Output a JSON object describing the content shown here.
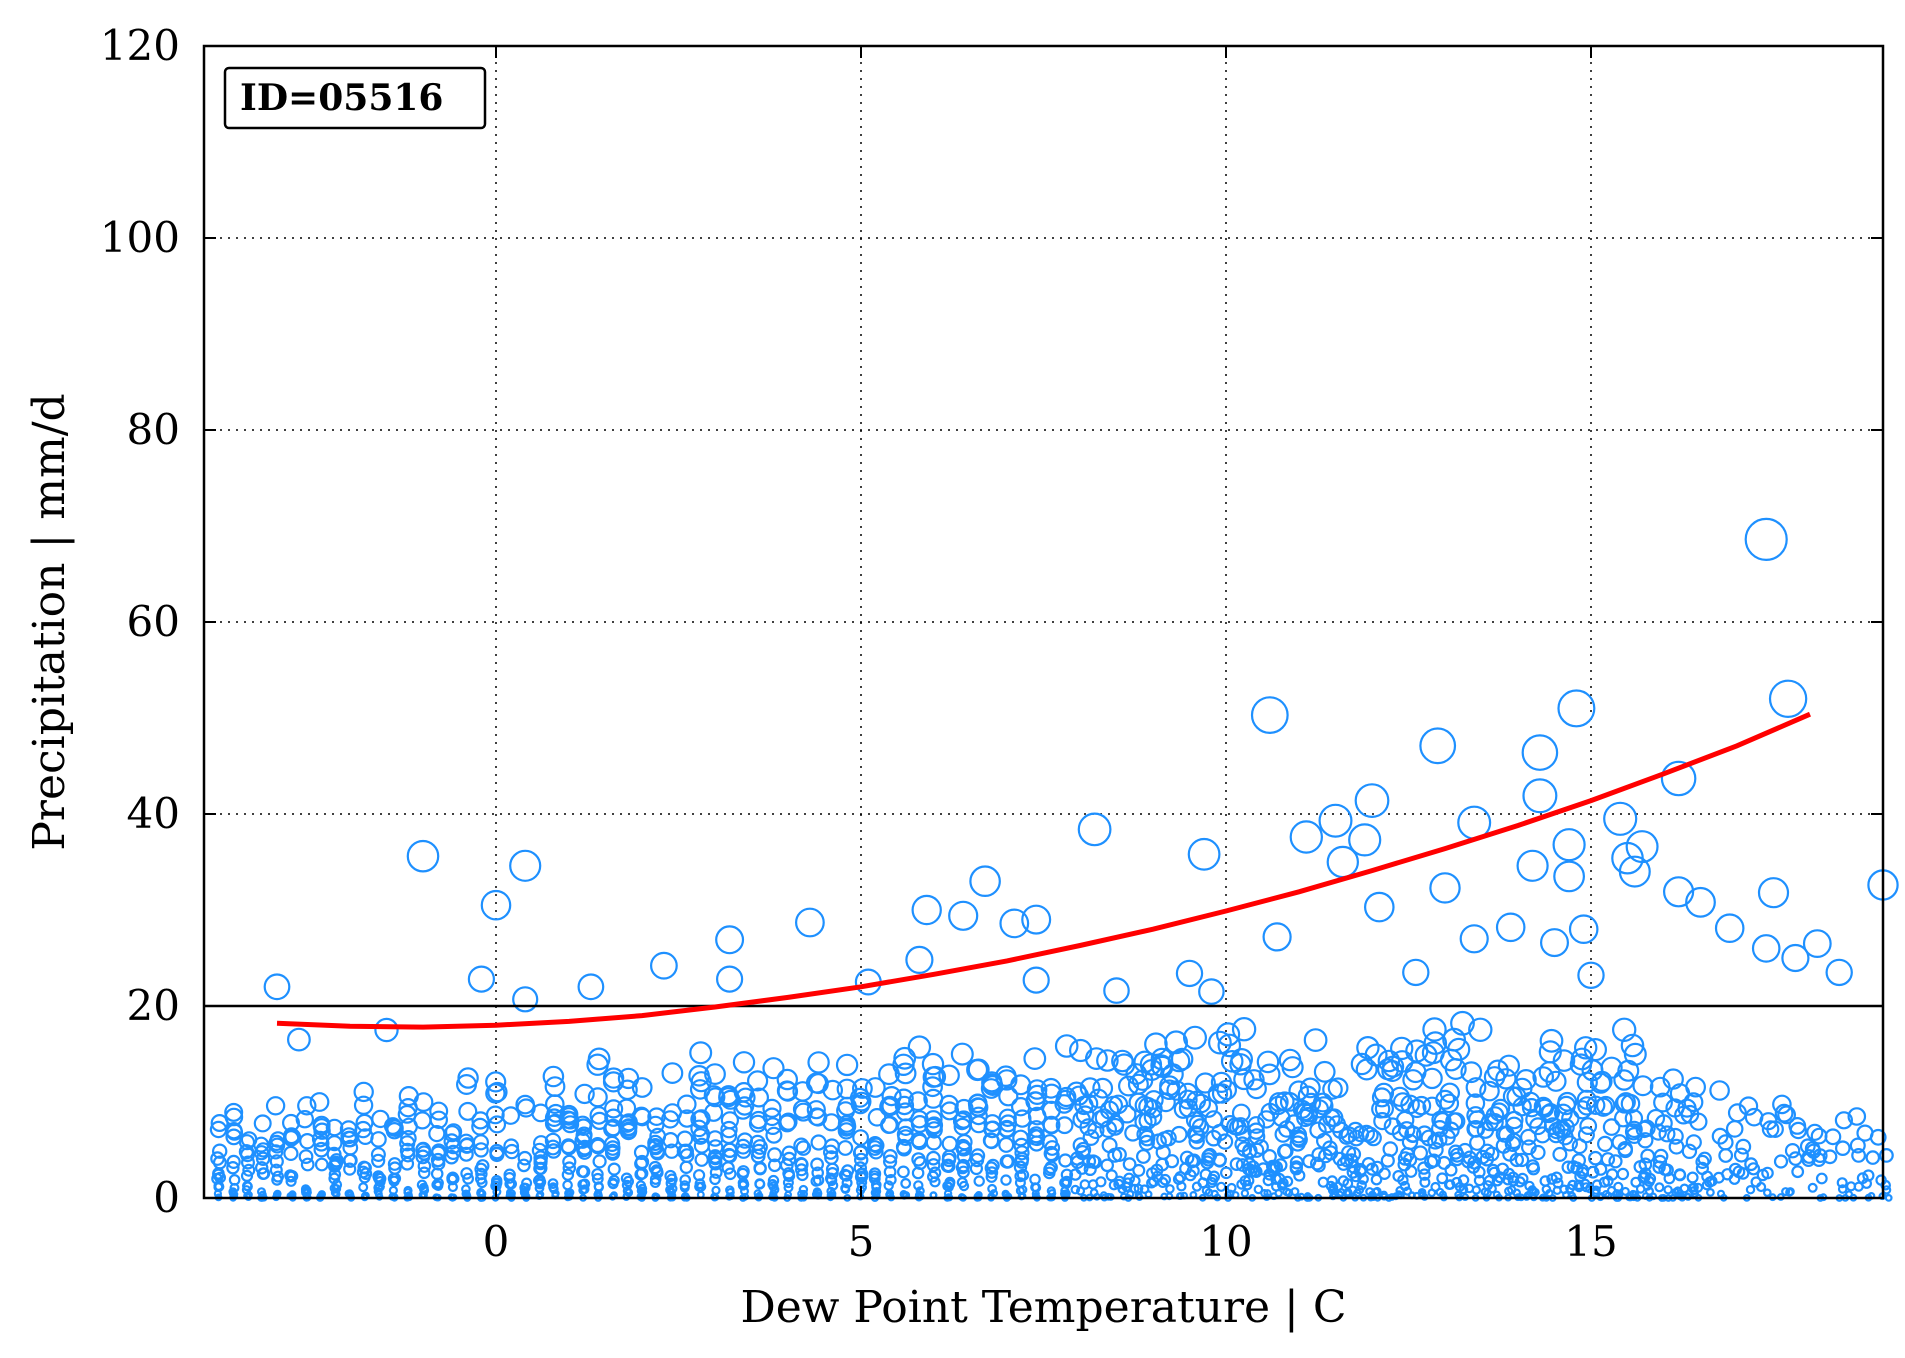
{
  "chart_data": {
    "type": "scatter",
    "title": "",
    "xlabel": "Dew Point Temperature | C",
    "ylabel": "Precipitation | mm/d",
    "xlim": [
      -4,
      19
    ],
    "ylim": [
      0,
      120
    ],
    "xticks": [
      "0",
      "5",
      "10",
      "15"
    ],
    "xtick_values": [
      0,
      5,
      10,
      15
    ],
    "yticks": [
      "0",
      "20",
      "40",
      "60",
      "80",
      "100",
      "120"
    ],
    "ytick_values": [
      0,
      20,
      40,
      60,
      80,
      100,
      120
    ],
    "grid": true,
    "annotation": "ID=05516",
    "annotation_position": "top-left",
    "reference_line_y": 20,
    "point_color": "#1e90ff",
    "fit_color": "#ff0000",
    "fit_curve": {
      "x": [
        -3.0,
        -2.0,
        -1.0,
        0.0,
        1.0,
        2.0,
        3.0,
        4.0,
        5.0,
        6.0,
        7.0,
        8.0,
        9.0,
        10.0,
        11.0,
        12.0,
        13.0,
        14.0,
        15.0,
        16.0,
        17.0,
        18.0
      ],
      "y": [
        18.2,
        17.9,
        17.8,
        18.0,
        18.4,
        19.0,
        19.9,
        20.9,
        22.0,
        23.3,
        24.7,
        26.3,
        28.0,
        29.9,
        31.9,
        34.1,
        36.4,
        38.8,
        41.4,
        44.2,
        47.1,
        50.4
      ]
    },
    "outliers": {
      "x": [
        -3.0,
        -2.7,
        -1.5,
        -1.0,
        0.0,
        -0.2,
        0.4,
        0.4,
        1.3,
        2.3,
        3.2,
        3.2,
        4.3,
        5.1,
        5.8,
        5.9,
        6.4,
        6.7,
        7.1,
        7.4,
        7.4,
        8.2,
        8.5,
        9.5,
        9.7,
        9.8,
        10.6,
        10.7,
        11.1,
        11.5,
        11.6,
        11.9,
        12.0,
        12.1,
        12.6,
        12.9,
        13.0,
        13.4,
        13.4,
        13.9,
        14.2,
        14.3,
        14.3,
        14.5,
        14.7,
        14.7,
        14.8,
        14.9,
        15.0,
        15.4,
        15.5,
        15.6,
        15.7,
        16.2,
        16.2,
        16.5,
        16.9,
        17.4,
        17.4,
        17.5,
        17.7,
        17.8,
        18.1,
        18.4,
        19.0
      ],
      "y": [
        22.0,
        16.5,
        17.5,
        35.6,
        30.5,
        22.8,
        34.6,
        20.7,
        22.0,
        24.2,
        26.9,
        22.8,
        28.7,
        22.5,
        24.8,
        30.0,
        29.4,
        33.0,
        28.6,
        29.0,
        22.7,
        38.4,
        21.6,
        23.4,
        35.8,
        21.5,
        50.3,
        27.2,
        37.6,
        39.3,
        35.0,
        37.3,
        41.4,
        30.3,
        23.5,
        47.1,
        32.3,
        39.1,
        27.0,
        28.2,
        34.6,
        46.4,
        41.9,
        26.6,
        36.8,
        33.5,
        51.0,
        28.0,
        23.2,
        39.5,
        35.4,
        34.0,
        36.6,
        43.7,
        31.9,
        30.8,
        28.1,
        26.0,
        68.6,
        31.8,
        52.0,
        25.0,
        26.5,
        23.5,
        32.6
      ]
    },
    "sample_density": {
      "x_start": -3.8,
      "x_end": 19.0,
      "x_step": 0.2,
      "max_envelope_x": [
        -3.8,
        -1.0,
        0.0,
        2.0,
        5.0,
        10.0,
        13.0,
        15.0,
        17.0,
        19.0
      ],
      "max_envelope_y": [
        12,
        12,
        14,
        16,
        17,
        19,
        20,
        19,
        14,
        10
      ]
    }
  }
}
